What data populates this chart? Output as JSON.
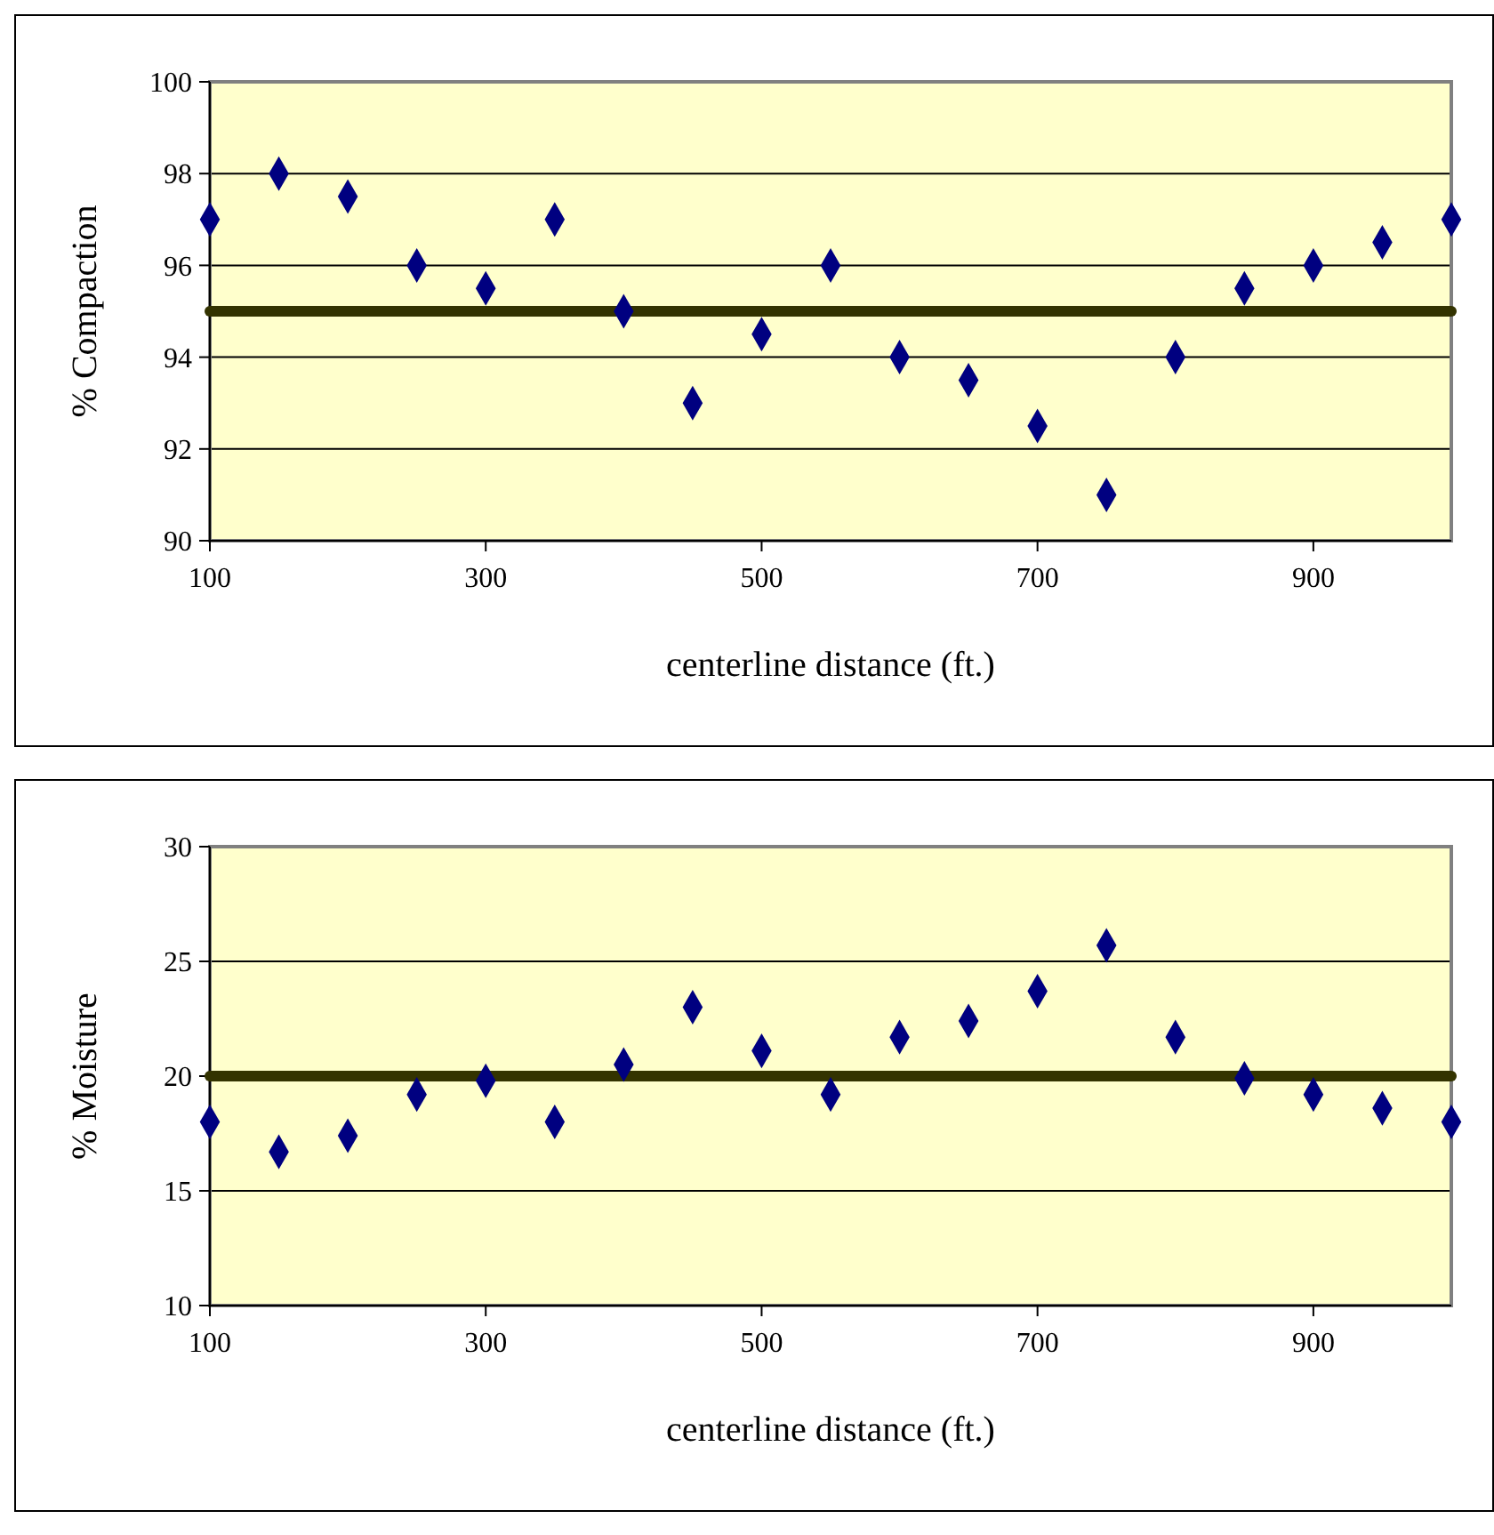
{
  "chart_data": [
    {
      "type": "scatter",
      "xlabel": "centerline distance (ft.)",
      "ylabel": "% Compaction",
      "x": [
        100,
        150,
        200,
        250,
        300,
        350,
        400,
        450,
        500,
        550,
        600,
        650,
        700,
        750,
        800,
        850,
        900,
        950,
        1000
      ],
      "series": [
        {
          "color": "#000080",
          "values": [
            97,
            98,
            97.5,
            96,
            95.5,
            97,
            95,
            93,
            94.5,
            96,
            94,
            93.5,
            92.5,
            91,
            94,
            95.5,
            96,
            96.5,
            97
          ]
        }
      ],
      "xlim": [
        100,
        1000
      ],
      "xticks": [
        100,
        300,
        500,
        700,
        900
      ],
      "ylim": [
        90,
        100
      ],
      "yticks": [
        90,
        92,
        94,
        96,
        98,
        100
      ],
      "grid": "y",
      "marker": "diamond",
      "ref_lines": [
        {
          "axis": "y",
          "value": 95,
          "color": "#333300"
        }
      ]
    },
    {
      "type": "scatter",
      "xlabel": "centerline distance (ft.)",
      "ylabel": "% Moisture",
      "x": [
        100,
        150,
        200,
        250,
        300,
        350,
        400,
        450,
        500,
        550,
        600,
        650,
        700,
        750,
        800,
        850,
        900,
        950,
        1000
      ],
      "series": [
        {
          "color": "#000080",
          "values": [
            18,
            16.7,
            17.4,
            19.2,
            19.8,
            18,
            20.5,
            23,
            21.1,
            19.2,
            21.7,
            22.4,
            23.7,
            25.7,
            21.7,
            19.9,
            19.2,
            18.6,
            18
          ]
        }
      ],
      "xlim": [
        100,
        1000
      ],
      "xticks": [
        100,
        300,
        500,
        700,
        900
      ],
      "ylim": [
        10,
        30
      ],
      "yticks": [
        10,
        15,
        20,
        25,
        30
      ],
      "grid": "y",
      "marker": "diamond",
      "ref_lines": [
        {
          "axis": "y",
          "value": 20,
          "color": "#333300"
        }
      ]
    }
  ]
}
